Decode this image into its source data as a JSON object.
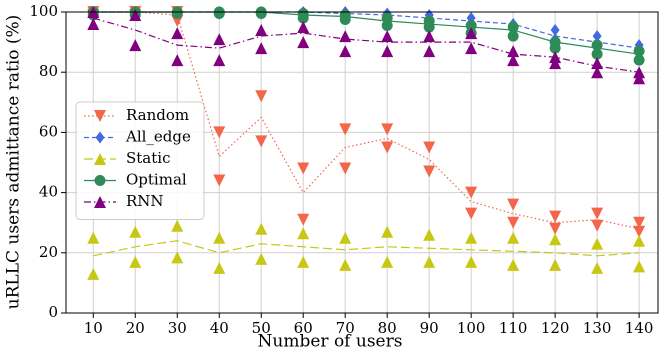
{
  "chart_data": {
    "type": "line",
    "x_label": "Number of users",
    "y_label": "uRLLC users admittance ratio (%)",
    "x": [
      10,
      20,
      30,
      40,
      50,
      60,
      70,
      80,
      90,
      100,
      110,
      120,
      130,
      140
    ],
    "xlim": [
      3.5,
      144.5
    ],
    "xticks": [
      10,
      20,
      30,
      40,
      50,
      60,
      70,
      80,
      90,
      100,
      110,
      120,
      130,
      140
    ],
    "ylim": [
      0,
      100
    ],
    "yticks": [
      0,
      20,
      40,
      60,
      80,
      100
    ],
    "grid": true,
    "legend": "center left",
    "series": [
      {
        "name": "Random",
        "color": "#f4664a",
        "marker": "triangle-down",
        "linestyle": "dotted",
        "values": [
          100,
          100,
          99,
          52,
          65,
          40,
          55,
          58,
          51,
          37,
          33,
          30,
          31,
          28
        ],
        "high": [
          100,
          100,
          100,
          60,
          72,
          48,
          61,
          61,
          55,
          40,
          36,
          32,
          33,
          30
        ],
        "low": [
          99,
          99,
          97,
          44,
          57,
          31,
          48,
          55,
          47,
          33,
          30,
          28,
          29,
          27
        ]
      },
      {
        "name": "All_edge",
        "color": "#4169e1",
        "marker": "diamond",
        "linestyle": "dashed",
        "values": [
          100,
          100,
          100,
          100,
          100,
          100,
          99.5,
          99,
          98,
          97,
          96,
          92,
          90,
          88
        ],
        "high": [
          100,
          100,
          100,
          100,
          100,
          100,
          100,
          99.5,
          99,
          98,
          96,
          94,
          92,
          89
        ],
        "low": [
          100,
          100,
          100,
          99.5,
          99.5,
          99,
          99,
          98,
          97,
          96,
          94,
          91,
          89,
          87
        ]
      },
      {
        "name": "Static",
        "color": "#c8c814",
        "marker": "triangle-up",
        "linestyle": "longdash",
        "values": [
          19,
          22,
          24,
          20,
          23,
          22,
          21,
          22,
          21.5,
          21,
          20.5,
          20,
          19,
          20
        ],
        "high": [
          25,
          27,
          29,
          25,
          28,
          26.5,
          25,
          27,
          26,
          25,
          25,
          24.5,
          23,
          24
        ],
        "low": [
          13,
          17,
          18.5,
          15,
          18,
          17,
          16,
          17,
          17,
          17,
          16,
          16,
          15,
          15.5
        ]
      },
      {
        "name": "Optimal",
        "color": "#2e8b57",
        "marker": "circle",
        "linestyle": "solid",
        "values": [
          100,
          100,
          100,
          100,
          100,
          99,
          98.5,
          97,
          96,
          95,
          94,
          90,
          88,
          86
        ],
        "high": [
          100,
          100,
          100,
          100,
          100,
          99.5,
          99,
          98,
          97,
          95.5,
          95,
          90,
          89,
          87
        ],
        "low": [
          99,
          99,
          99.5,
          99.5,
          99.5,
          98,
          97.5,
          95.5,
          95,
          93,
          92,
          88,
          86,
          84
        ]
      },
      {
        "name": "RNN",
        "color": "#800080",
        "marker": "triangle-up",
        "linestyle": "dashdot",
        "values": [
          98,
          94,
          89,
          88,
          92,
          93,
          91,
          90,
          90,
          90,
          86,
          85,
          82,
          80
        ],
        "high": [
          100,
          99,
          93,
          91,
          94,
          95,
          92,
          92,
          92,
          93,
          87,
          85,
          83,
          80
        ],
        "low": [
          96,
          89,
          84,
          84,
          88,
          90,
          87,
          87,
          87,
          88,
          84,
          83,
          80,
          78
        ]
      }
    ]
  }
}
